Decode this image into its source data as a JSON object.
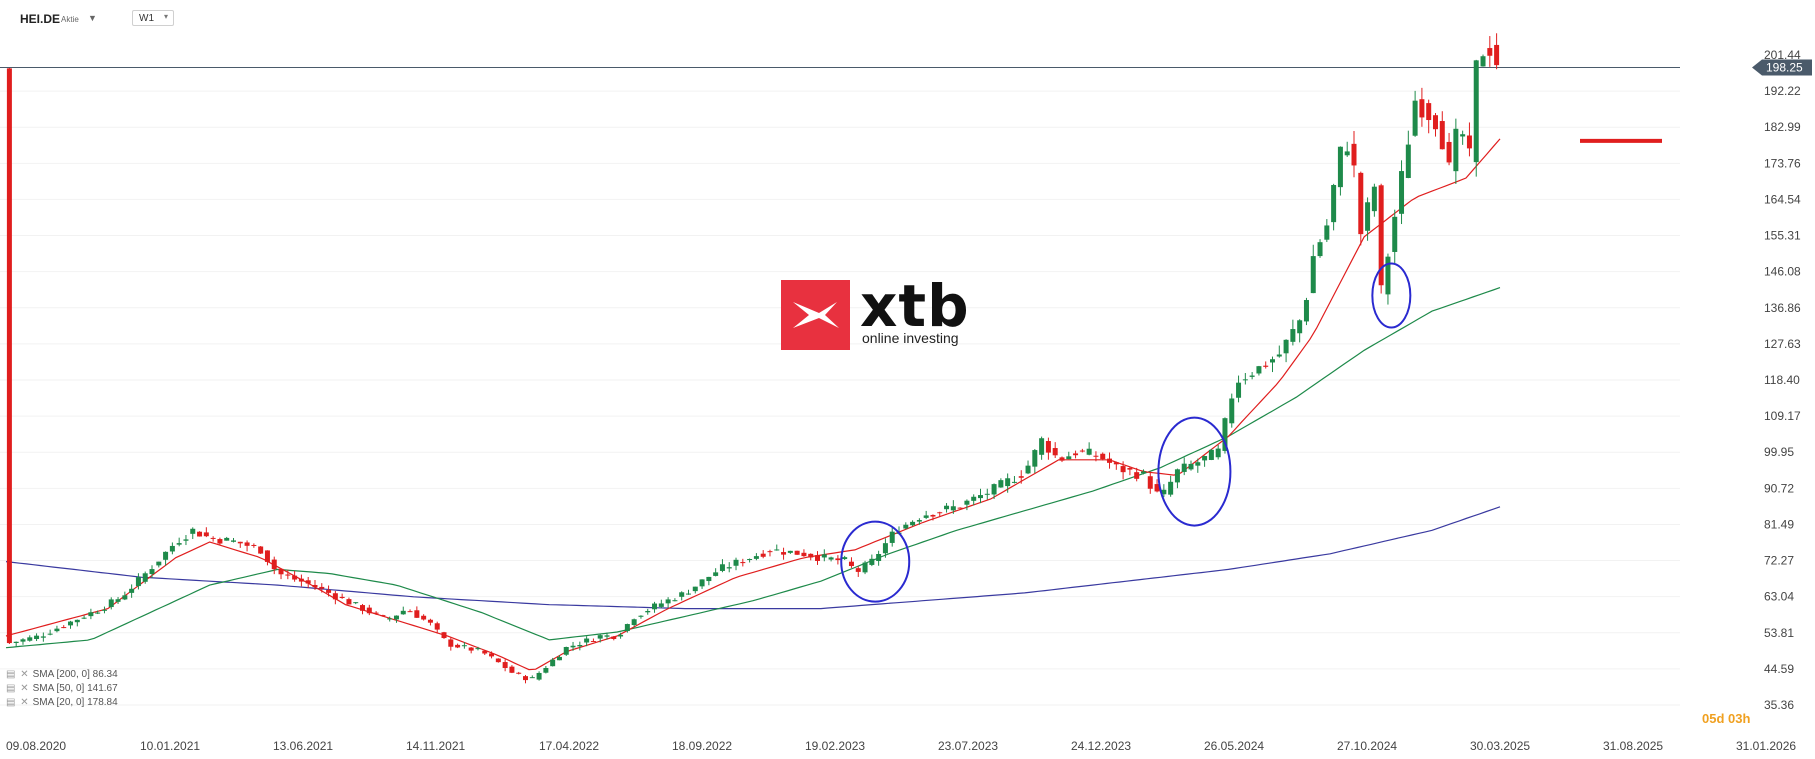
{
  "toolbar": {
    "symbol": "HEI.DE",
    "instrument_type": "Aktie",
    "timeframe": "W1"
  },
  "logo": {
    "brand": "xtb",
    "tagline": "online investing"
  },
  "countdown": "05d 03h",
  "indicators": [
    {
      "label": "SMA [200, 0] 86.34",
      "color": "#3a3aa0"
    },
    {
      "label": "SMA [50, 0] 141.67",
      "color": "#1e8a4a"
    },
    {
      "label": "SMA [20, 0] 178.84",
      "color": "#e01e1e"
    }
  ],
  "price_labels": {
    "high": "201.44",
    "current": "198.25"
  },
  "chart_data": {
    "type": "candlestick",
    "y_ticks": [
      "35.36",
      "44.59",
      "53.81",
      "63.04",
      "72.27",
      "81.49",
      "90.72",
      "99.95",
      "109.17",
      "118.40",
      "127.63",
      "136.86",
      "146.08",
      "155.31",
      "164.54",
      "173.76",
      "182.99",
      "192.22"
    ],
    "ylim": [
      35.36,
      201.44
    ],
    "x_ticks": [
      "09.08.2020",
      "10.01.2021",
      "13.06.2021",
      "14.11.2021",
      "17.04.2022",
      "18.09.2022",
      "19.02.2023",
      "23.07.2023",
      "24.12.2023",
      "26.05.2024",
      "27.10.2024",
      "30.03.2025",
      "31.08.2025",
      "31.01.2026"
    ],
    "current_price": 198.25,
    "resistance_level": 179.5,
    "colors": {
      "up": "#1e8a4a",
      "down": "#e01e1e",
      "sma20": "#e01e1e",
      "sma50": "#1e8a4a",
      "sma200": "#3a3aa0",
      "circle": "#2a2ad0"
    },
    "price_path": [
      [
        0,
        51
      ],
      [
        10,
        53
      ],
      [
        20,
        57
      ],
      [
        28,
        60
      ],
      [
        34,
        63
      ],
      [
        40,
        68
      ],
      [
        50,
        77
      ],
      [
        55,
        80
      ],
      [
        60,
        78
      ],
      [
        68,
        77
      ],
      [
        75,
        75
      ],
      [
        80,
        69
      ],
      [
        90,
        66
      ],
      [
        95,
        64
      ],
      [
        105,
        60
      ],
      [
        112,
        57
      ],
      [
        118,
        60
      ],
      [
        125,
        56
      ],
      [
        130,
        51
      ],
      [
        140,
        49
      ],
      [
        147,
        45
      ],
      [
        150,
        43
      ],
      [
        155,
        42
      ],
      [
        160,
        46
      ],
      [
        165,
        50
      ],
      [
        175,
        53
      ],
      [
        180,
        53
      ],
      [
        185,
        58
      ],
      [
        192,
        61
      ],
      [
        200,
        64
      ],
      [
        210,
        70
      ],
      [
        225,
        75
      ],
      [
        235,
        74
      ],
      [
        240,
        73
      ],
      [
        248,
        72
      ],
      [
        250,
        69
      ],
      [
        255,
        72
      ],
      [
        262,
        80
      ],
      [
        270,
        84
      ],
      [
        280,
        86
      ],
      [
        290,
        90
      ],
      [
        300,
        95
      ],
      [
        305,
        103
      ],
      [
        310,
        98
      ],
      [
        315,
        100
      ],
      [
        322,
        99
      ],
      [
        327,
        96
      ],
      [
        335,
        94
      ],
      [
        340,
        88
      ],
      [
        345,
        95
      ],
      [
        350,
        97
      ],
      [
        357,
        100
      ],
      [
        362,
        118
      ],
      [
        370,
        122
      ],
      [
        375,
        125
      ],
      [
        382,
        135
      ],
      [
        385,
        150
      ],
      [
        390,
        160
      ],
      [
        392,
        175
      ],
      [
        396,
        180
      ],
      [
        399,
        156
      ],
      [
        403,
        168
      ],
      [
        405,
        141
      ],
      [
        410,
        165
      ],
      [
        415,
        190
      ],
      [
        422,
        184
      ],
      [
        425,
        172
      ],
      [
        428,
        184
      ],
      [
        431,
        175
      ],
      [
        433,
        198
      ],
      [
        436,
        205
      ],
      [
        440,
        198
      ]
    ],
    "sma20": [
      [
        0,
        53
      ],
      [
        30,
        60
      ],
      [
        50,
        73
      ],
      [
        60,
        77
      ],
      [
        75,
        73
      ],
      [
        90,
        66
      ],
      [
        100,
        61
      ],
      [
        115,
        57
      ],
      [
        130,
        53
      ],
      [
        145,
        48
      ],
      [
        155,
        44
      ],
      [
        165,
        49
      ],
      [
        180,
        53
      ],
      [
        195,
        60
      ],
      [
        215,
        68
      ],
      [
        235,
        73
      ],
      [
        250,
        75
      ],
      [
        270,
        82
      ],
      [
        290,
        88
      ],
      [
        310,
        98
      ],
      [
        325,
        98
      ],
      [
        335,
        95
      ],
      [
        345,
        94
      ],
      [
        360,
        104
      ],
      [
        375,
        118
      ],
      [
        385,
        130
      ],
      [
        400,
        155
      ],
      [
        415,
        165
      ],
      [
        430,
        170
      ],
      [
        440,
        180
      ]
    ],
    "sma50": [
      [
        0,
        50
      ],
      [
        25,
        52
      ],
      [
        40,
        58
      ],
      [
        60,
        66
      ],
      [
        80,
        70
      ],
      [
        95,
        69
      ],
      [
        115,
        66
      ],
      [
        140,
        59
      ],
      [
        160,
        52
      ],
      [
        180,
        54
      ],
      [
        200,
        58
      ],
      [
        220,
        62
      ],
      [
        240,
        67
      ],
      [
        260,
        74
      ],
      [
        280,
        80
      ],
      [
        300,
        85
      ],
      [
        320,
        90
      ],
      [
        340,
        96
      ],
      [
        360,
        104
      ],
      [
        380,
        114
      ],
      [
        400,
        126
      ],
      [
        420,
        136
      ],
      [
        440,
        142
      ]
    ],
    "sma200": [
      [
        0,
        72
      ],
      [
        40,
        68
      ],
      [
        80,
        66
      ],
      [
        120,
        63
      ],
      [
        160,
        61
      ],
      [
        200,
        60
      ],
      [
        240,
        60
      ],
      [
        270,
        62
      ],
      [
        300,
        64
      ],
      [
        330,
        67
      ],
      [
        360,
        70
      ],
      [
        390,
        74
      ],
      [
        420,
        80
      ],
      [
        440,
        86
      ]
    ],
    "circles": [
      [
        256,
        72
      ],
      [
        350,
        95
      ],
      [
        408,
        140
      ]
    ]
  }
}
